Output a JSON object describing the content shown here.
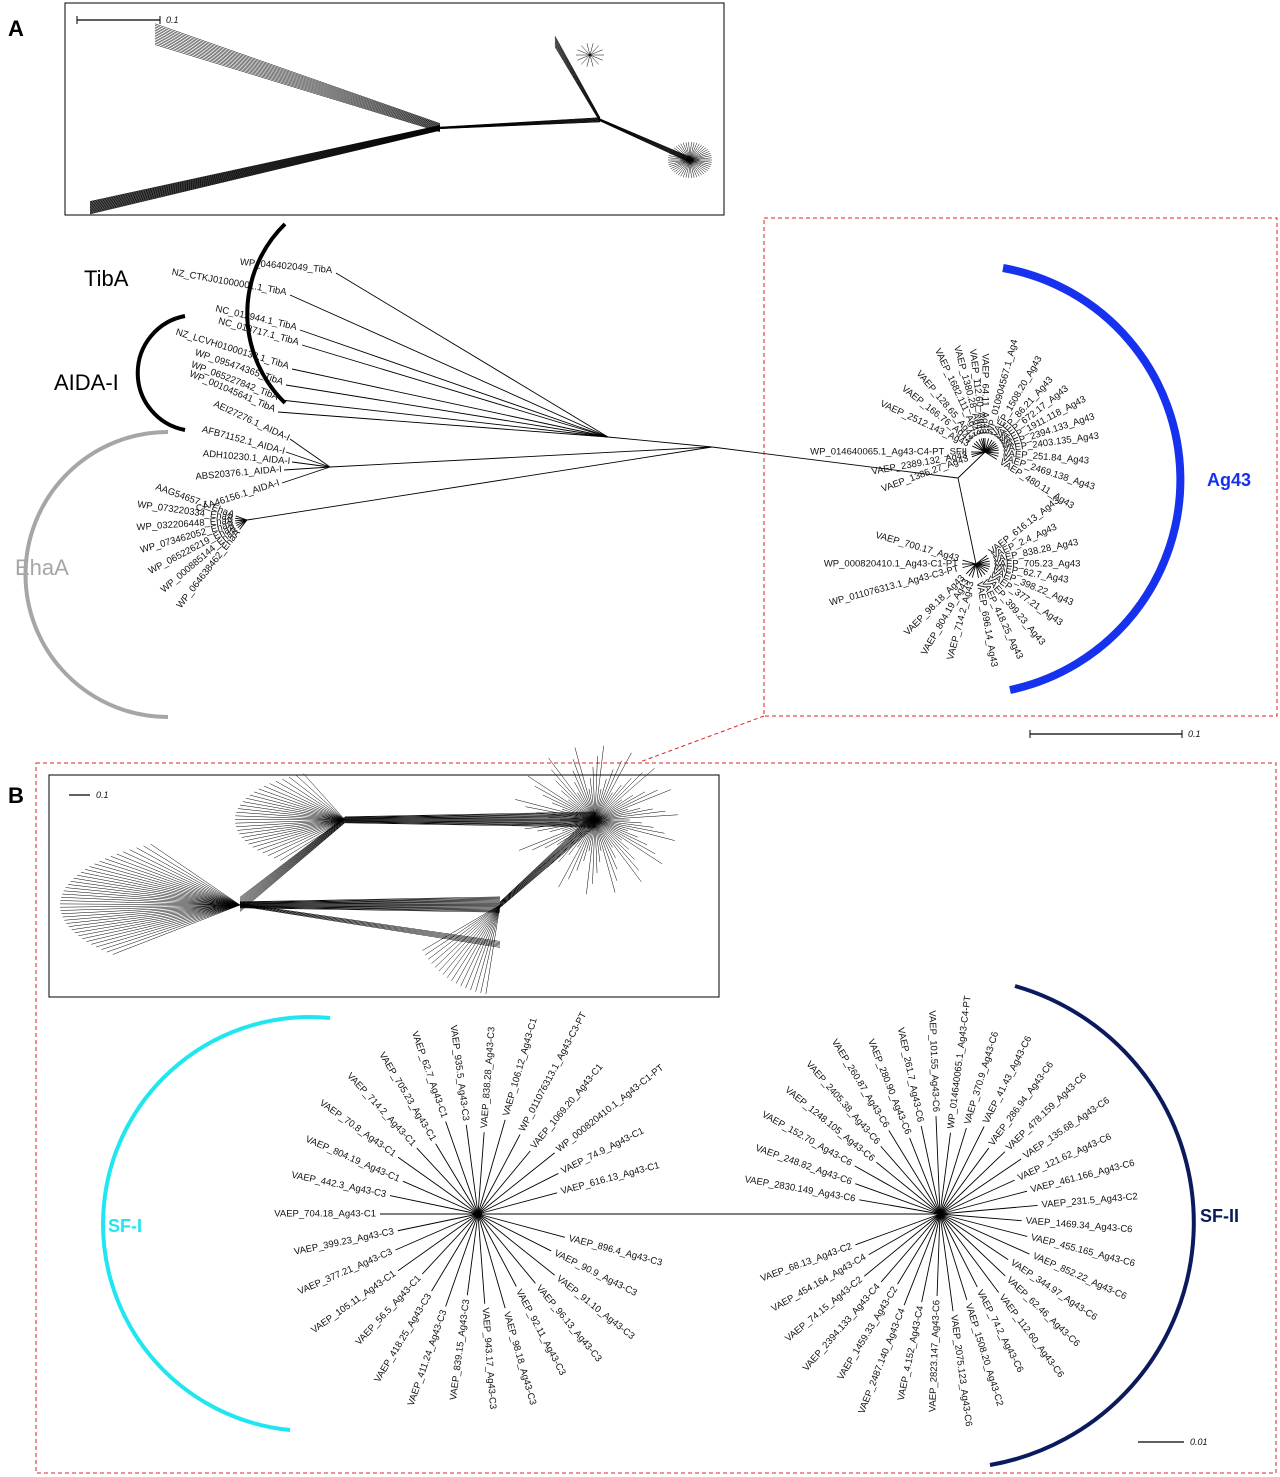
{
  "panels": {
    "a": "A",
    "b": "B"
  },
  "colors": {
    "branch": "#000000",
    "tiba": "#000000",
    "aida": "#000000",
    "ehaa": "#a6a6a6",
    "ag43": "#1632ee",
    "sf1": "#1fe6f0",
    "sf2": "#0a1a5c",
    "dashed_box": "#e02020"
  },
  "scales": {
    "inset_a": "0.1",
    "tree_a": "0.1",
    "inset_b": "0.1",
    "tree_b": "0.01"
  },
  "panelA": {
    "groups": {
      "tiba": "TibA",
      "aida": "AIDA-I",
      "ehaa": "EhaA",
      "ag43": "Ag43"
    },
    "tiba_leaves": [
      "WP_046402049_TibA",
      "NZ_CTKJ01000001.1_TibA",
      "NC_012944.1_TibA",
      "NC_013717.1_TibA",
      "NZ_LCVH01000138.1_TibA",
      "WP_095474365_TibA",
      "WP_065227842_TibA",
      "WP_001045641_TibA"
    ],
    "aida_leaves": [
      "AEI27276.1_AIDA-I",
      "AFB71152.1_AIDA-I",
      "ADH10230.1_AIDA-I",
      "ABS20376.1_AIDA-I",
      "CAA46156.1_AIDA-I"
    ],
    "ehaa_leaves": [
      "AAG54657.1_EhaA",
      "WP_073220334_EhaA",
      "WP_032206448_EhaA",
      "WP_073462052_EhaA",
      "WP_065226219_EhaA",
      "WP_000885144_EhaA",
      "WP_064638462_EhaA"
    ],
    "ag43_upper": [
      "WP_014640065.1_Ag43-C4-PT_SFII",
      "VAEP_2512.143_Ag43",
      "VAEP_166.76_Ag43",
      "VAEP_128.65_Ag43",
      "VAEP_1682.111_Ag43",
      "VAEP_1380.28_Ag43",
      "VAEP_112.60_Ag43",
      "VAEP_64.11_Ag43",
      "WP_010904567.1_Ag4",
      "VAEP_1508.20_Ag43",
      "VAEP_86.21_Ag43",
      "VAEP_672.17_Ag43",
      "VAEP_1911.118_Ag43",
      "VAEP_2394.133_Ag43",
      "VAEP_2403.135_Ag43",
      "VAEP_251.84_Ag43",
      "VAEP_2469.138_Ag43",
      "VAEP_480.11_Ag43",
      "VAEP_1385.27_Ag43",
      "VAEP_2389.132_Ag43"
    ],
    "ag43_lower": [
      "VAEP_700.17_Ag43",
      "WP_000820410.1_Ag43-C1-PT",
      "WP_011076313.1_Ag43-C3-PT",
      "VAEP_98.18_Ag43",
      "VAEP_804.19_Ag43",
      "VAEP_714.2_Ag43",
      "VAEP_696.14_Ag43",
      "VAEP_418.25_Ag43",
      "VAEP_399.23_Ag43",
      "VAEP_377.21_Ag43",
      "VAEP_398.22_Ag43",
      "VAEP_62.7_Ag43",
      "VAEP_705.23_Ag43",
      "VAEP_838.28_Ag43",
      "VAEP_2.4_Ag43",
      "VAEP_616.13_Ag43"
    ]
  },
  "panelB": {
    "groups": {
      "sf1": "SF-I",
      "sf2": "SF-II"
    },
    "sf1_leaves": [
      "VAEP_616.13_Ag43-C1",
      "VAEP_74.9_Ag43-C1",
      "WP_000820410.1_Ag43-C1-PT",
      "VAEP_1069.20_Ag43-C1",
      "WP_011076313.1_Ag43-C3-PT",
      "VAEP_106.12_Ag43-C1",
      "VAEP_838.28_Ag43-C3",
      "VAEP_935.5_Ag43-C3",
      "VAEP_62.7_Ag43-C1",
      "VAEP_705.23_Ag43-C1",
      "VAEP_714.2_Ag43-C1",
      "VAEP_70.8_Ag43-C1",
      "VAEP_804.19_Ag43-C1",
      "VAEP_442.3_Ag43-C3",
      "VAEP_704.18_Ag43-C1",
      "VAEP_399.23_Ag43-C3",
      "VAEP_377.21_Ag43-C3",
      "VAEP_105.11_Ag43-C1",
      "VAEP_56.5_Ag43-C1",
      "VAEP_418.25_Ag43-C3",
      "VAEP_411.24_Ag43-C3",
      "VAEP_839.15_Ag43-C3",
      "VAEP_943.17_Ag43-C3",
      "VAEP_98.18_Ag43-C3",
      "VAEP_92.11_Ag43-C3",
      "VAEP_96.13_Ag43-C3",
      "VAEP_91.10_Ag43-C3",
      "VAEP_90.9_Ag43-C3",
      "VAEP_896.4_Ag43-C3"
    ],
    "sf2_leaves": [
      "VAEP_2830.149_Ag43-C6",
      "VAEP_248.82_Ag43-C6",
      "VAEP_152.70_Ag43-C6",
      "VAEP_1248.105_Ag43-C6",
      "VAEP_2405.38_Ag43-C6",
      "VAEP_260.87_Ag43-C6",
      "VAEP_280.90_Ag43-C6",
      "VAEP_261.7_Ag43-C6",
      "VAEP_101.55_Ag43-C6",
      "WP_014640065.1_Ag43-C4-PT",
      "VAEP_370.9_Ag43-C6",
      "VAEP_41.43_Ag43-C6",
      "VAEP_286.94_Ag43-C6",
      "VAEP_478.159_Ag43-C6",
      "VAEP_135.68_Ag43-C6",
      "VAEP_121.62_Ag43-C6",
      "VAEP_461.166_Ag43-C6",
      "VAEP_231.5_Ag43-C2",
      "VAEP_1469.34_Ag43-C6",
      "VAEP_455.165_Ag43-C6",
      "VAEP_852.22_Ag43-C6",
      "VAEP_344.97_Ag43-C6",
      "VAEP_62.46_Ag43-C6",
      "VAEP_112.60_Ag43-C6",
      "VAEP_74.2_Ag43-C6",
      "VAEP_1508.20_Ag43-C2",
      "VAEP_2075.123_Ag43-C6",
      "VAEP_2823.147_Ag43-C6",
      "VAEP_4.152_Ag43-C4",
      "VAEP_2487.140_Ag43-C4",
      "VAEP_1459.33_Ag43-C2",
      "VAEP_2394.133_Ag43-C4",
      "VAEP_74.15_Ag43-C2",
      "VAEP_454.164_Ag43-C4",
      "VAEP_68.13_Ag43-C2"
    ]
  }
}
